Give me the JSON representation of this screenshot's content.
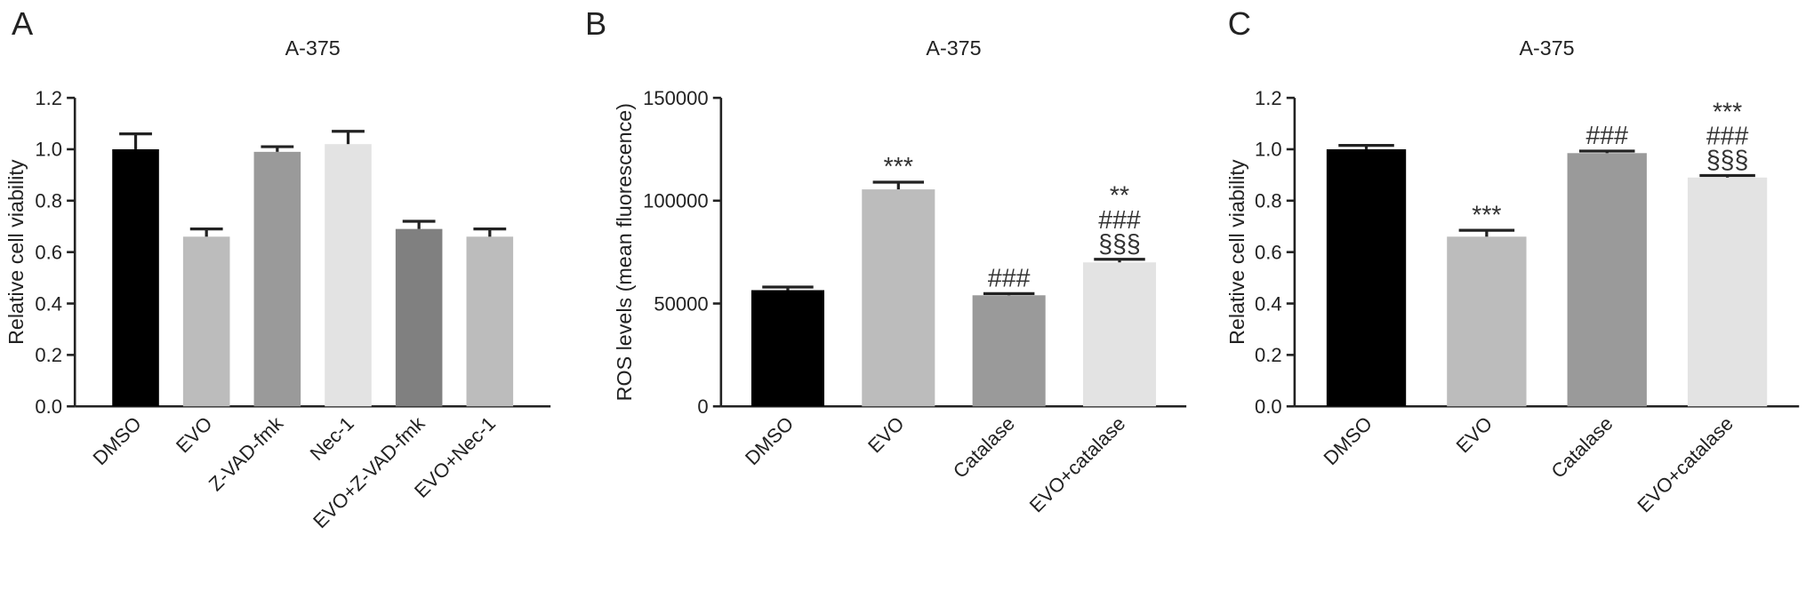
{
  "chart_data": [
    {
      "type": "bar",
      "panel": "A",
      "title": "A-375",
      "ylabel": "Relative cell viability",
      "categories": [
        "DMSO",
        "EVO",
        "Z-VAD-fmk",
        "Nec-1",
        "EVO+Z-VAD-fmk",
        "EVO+Nec-1"
      ],
      "values": [
        1.0,
        0.66,
        0.99,
        1.02,
        0.69,
        0.66
      ],
      "errors": [
        0.06,
        0.03,
        0.02,
        0.05,
        0.03,
        0.03
      ],
      "colors": [
        "#000000",
        "#bcbcbc",
        "#9a9a9a",
        "#e3e3e3",
        "#808080",
        "#bcbcbc"
      ],
      "annotations": [
        [],
        [],
        [],
        [],
        [],
        []
      ],
      "ylim": [
        0,
        1.2
      ],
      "yticks": [
        {
          "value": 0,
          "label": "0.0"
        },
        0.2,
        0.4,
        0.6,
        0.8,
        {
          "value": 1,
          "label": "1.0"
        },
        1.2
      ]
    },
    {
      "type": "bar",
      "panel": "B",
      "title": "A-375",
      "ylabel": "ROS levels (mean fluorescence)",
      "categories": [
        "DMSO",
        "EVO",
        "Catalase",
        "EVO+catalase"
      ],
      "values": [
        56500,
        105500,
        54000,
        70000
      ],
      "errors": [
        1500,
        3500,
        800,
        1500
      ],
      "colors": [
        "#000000",
        "#bcbcbc",
        "#9a9a9a",
        "#e3e3e3"
      ],
      "annotations": [
        [],
        [
          "***"
        ],
        [
          "###"
        ],
        [
          "**",
          "###",
          "§§§"
        ]
      ],
      "ylim": [
        0,
        150000
      ],
      "yticks": [
        0,
        50000,
        100000,
        150000
      ]
    },
    {
      "type": "bar",
      "panel": "C",
      "title": "A-375",
      "ylabel": "Relative cell viability",
      "categories": [
        "DMSO",
        "EVO",
        "Catalase",
        "EVO+catalase"
      ],
      "values": [
        1.0,
        0.66,
        0.985,
        0.89
      ],
      "errors": [
        0.015,
        0.025,
        0.008,
        0.008
      ],
      "colors": [
        "#000000",
        "#bcbcbc",
        "#9a9a9a",
        "#e3e3e3"
      ],
      "annotations": [
        [],
        [
          "***"
        ],
        [
          "###"
        ],
        [
          "***",
          "###",
          "§§§"
        ]
      ],
      "ylim": [
        0,
        1.2
      ],
      "yticks": [
        {
          "value": 0,
          "label": "0.0"
        },
        0.2,
        0.4,
        0.6,
        0.8,
        {
          "value": 1,
          "label": "1.0"
        },
        1.2
      ]
    }
  ]
}
